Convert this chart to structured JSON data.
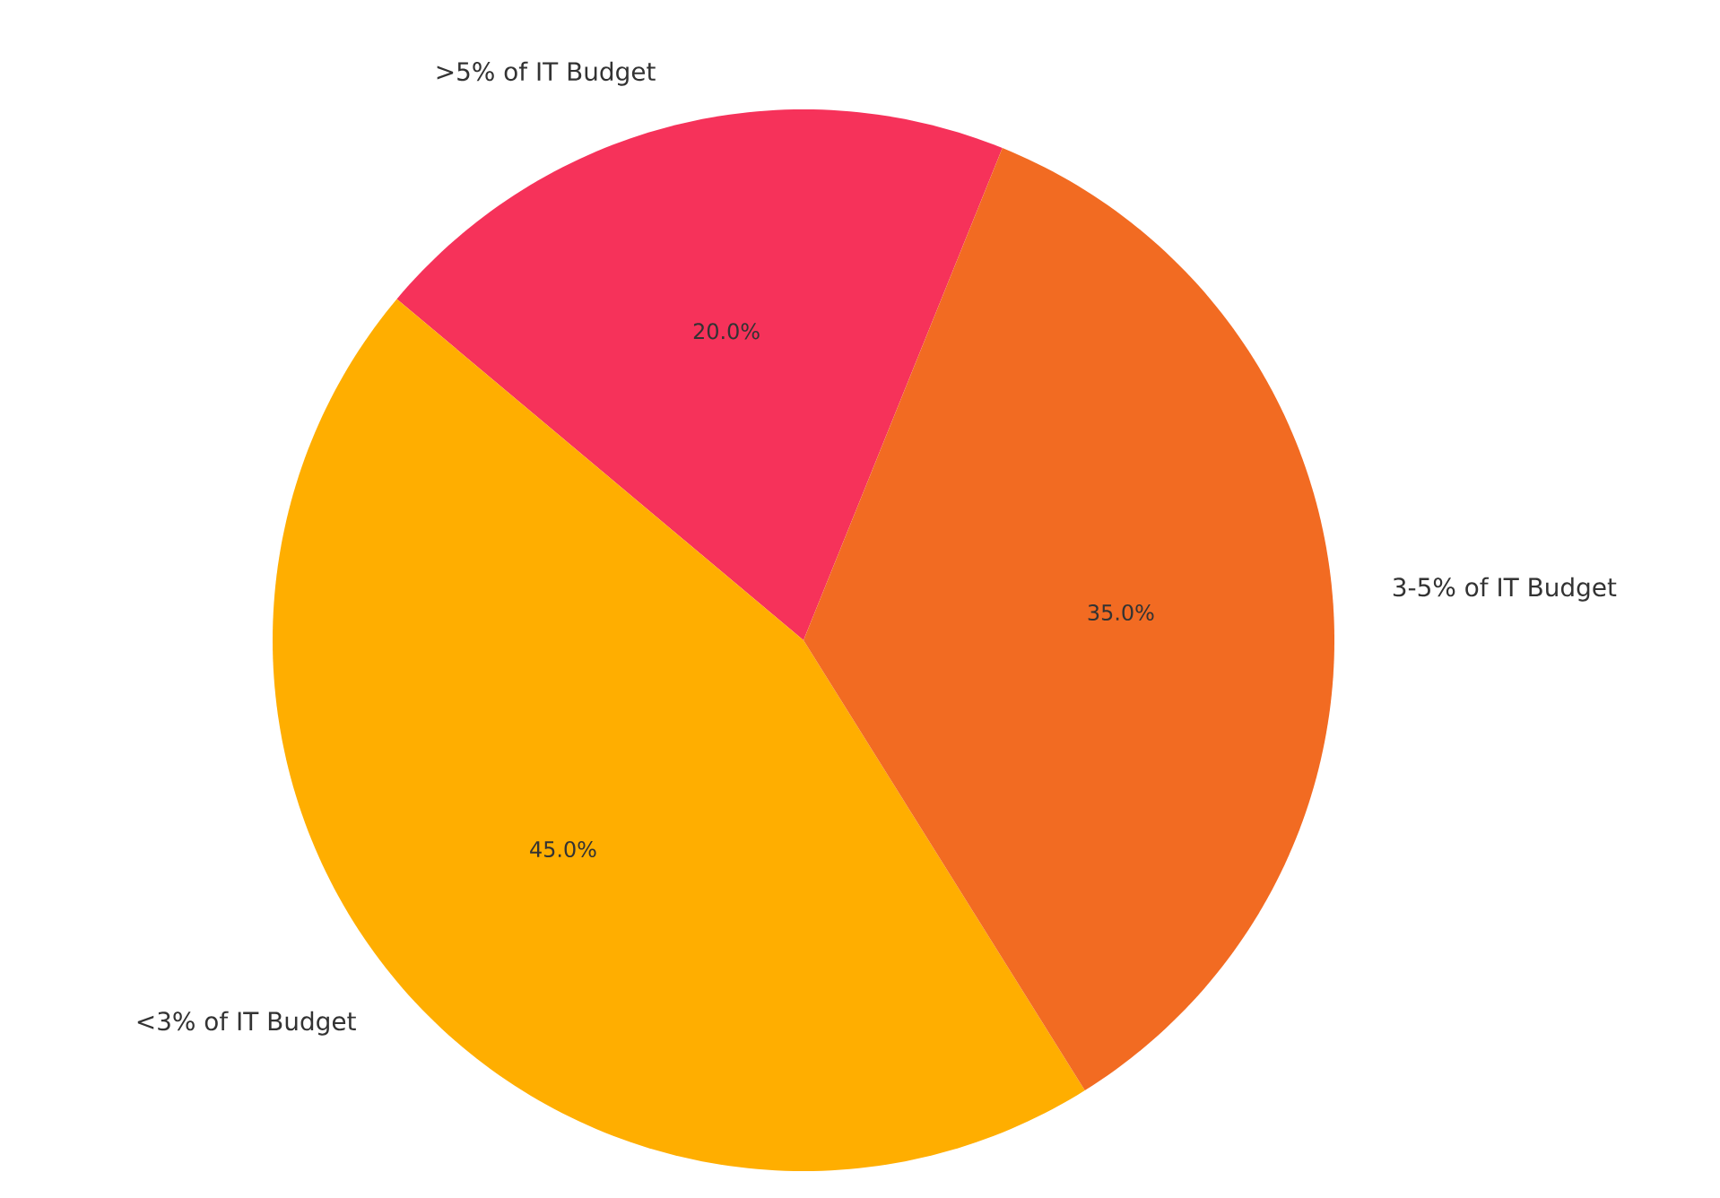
{
  "chart_data": {
    "type": "pie",
    "categories": [
      ">5% of IT Budget",
      "<3% of IT Budget",
      "3-5% of IT Budget"
    ],
    "values": [
      20,
      45,
      35
    ],
    "colors": [
      "#f6325a",
      "#ffae00",
      "#f26b22"
    ],
    "value_labels": [
      "20.0%",
      "45.0%",
      "35.0%"
    ]
  }
}
